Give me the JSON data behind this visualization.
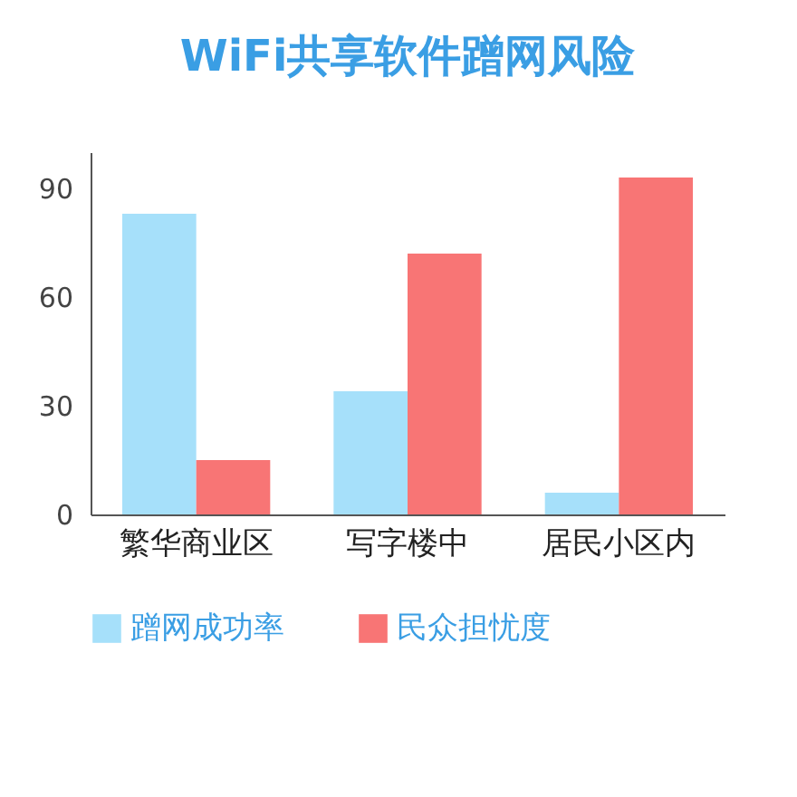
{
  "chart_data": {
    "type": "bar",
    "title": "WiFi共享软件蹭网风险",
    "categories": [
      "繁华商业区",
      "写字楼中",
      "居民小区内"
    ],
    "series": [
      {
        "name": "蹭网成功率",
        "color": "#a6e0fa",
        "values": [
          83,
          34,
          6
        ]
      },
      {
        "name": "民众担忧度",
        "color": "#f87575",
        "values": [
          15,
          72,
          93
        ]
      }
    ],
    "ylim": [
      0,
      100
    ],
    "yticks": [
      0,
      30,
      60,
      90
    ],
    "legend": "bottom"
  }
}
